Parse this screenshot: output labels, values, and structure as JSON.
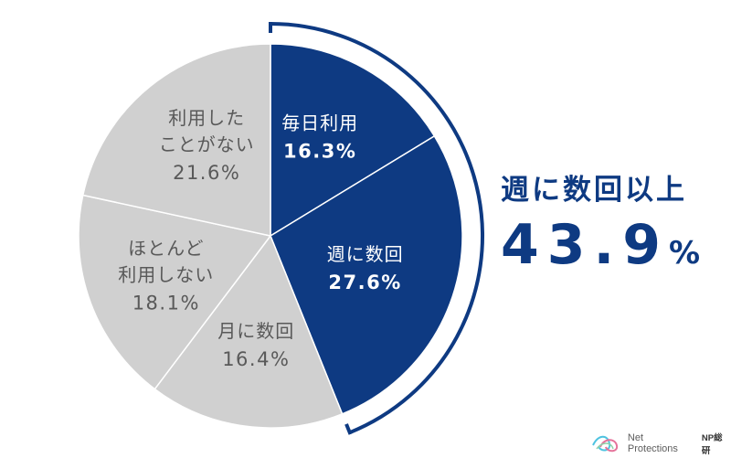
{
  "chart_data": {
    "type": "pie",
    "start_angle": "12 o'clock",
    "direction": "clockwise",
    "slices": [
      {
        "label_lines": [
          "毎日利用"
        ],
        "value": 16.3,
        "value_text": "16.3%",
        "color": "#0e3a82",
        "text_color": "#ffffff"
      },
      {
        "label_lines": [
          "週に数回"
        ],
        "value": 27.6,
        "value_text": "27.6%",
        "color": "#0e3a82",
        "text_color": "#ffffff"
      },
      {
        "label_lines": [
          "月に数回"
        ],
        "value": 16.4,
        "value_text": "16.4%",
        "color": "#d0d0d0",
        "text_color": "#595959"
      },
      {
        "label_lines": [
          "ほとんど",
          "利用しない"
        ],
        "value": 18.1,
        "value_text": "18.1%",
        "color": "#d0d0d0",
        "text_color": "#595959"
      },
      {
        "label_lines": [
          "利用した",
          "ことがない"
        ],
        "value": 21.6,
        "value_text": "21.6%",
        "color": "#d0d0d0",
        "text_color": "#595959"
      }
    ],
    "bracket": {
      "from_slice": 0,
      "to_slice": 1,
      "color": "#0e3a82"
    }
  },
  "callout": {
    "title": "週に数回以上",
    "value": "43.9",
    "unit": "%"
  },
  "brand": {
    "name": "Net Protections",
    "sub": "NP総研"
  },
  "colors": {
    "accent": "#0e3a82",
    "grey_slice": "#d0d0d0",
    "divider": "#ffffff",
    "grey_text": "#595959"
  }
}
